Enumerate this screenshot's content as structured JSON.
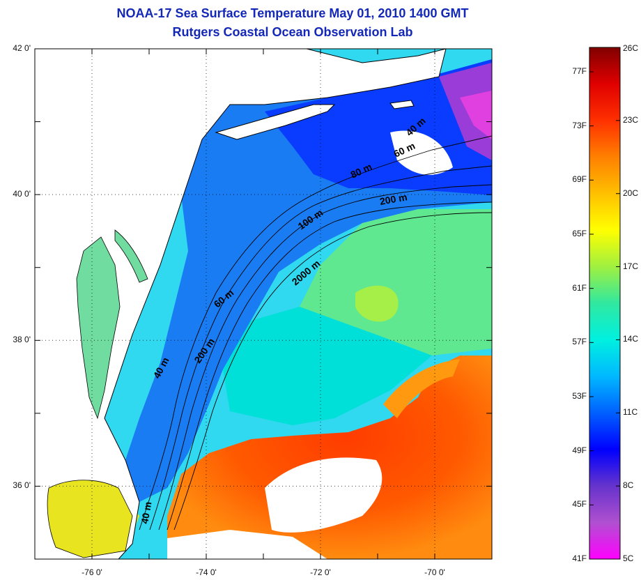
{
  "header": {
    "title": "NOAA-17 Sea Surface Temperature May 01, 2010 1400 GMT",
    "subtitle": "Rutgers Coastal Ocean Observation Lab"
  },
  "map": {
    "lon_labels": [
      {
        "value": -76,
        "label": "-76 0'"
      },
      {
        "value": -74,
        "label": "-74 0'"
      },
      {
        "value": -72,
        "label": "-72 0'"
      },
      {
        "value": -70,
        "label": "-70 0'"
      }
    ],
    "lat_labels": [
      {
        "value": 42,
        "label": "42 0'"
      },
      {
        "value": 40,
        "label": "40 0'"
      },
      {
        "value": 38,
        "label": "38 0'"
      },
      {
        "value": 36,
        "label": "36 0'"
      }
    ],
    "lon_range": [
      -77,
      -69
    ],
    "lat_range": [
      35,
      42
    ],
    "grid": "dotted",
    "contour_labels": [
      "40 m",
      "60 m",
      "80 m",
      "200 m",
      "100 m",
      "2000 m",
      "60 m",
      "40 m",
      "200 m",
      "40 m"
    ]
  },
  "colorbar": {
    "fahrenheit_labels": [
      "77F",
      "73F",
      "69F",
      "65F",
      "61F",
      "57F",
      "53F",
      "49F",
      "45F",
      "41F"
    ],
    "celsius_labels": [
      "26C",
      "23C",
      "20C",
      "17C",
      "14C",
      "11C",
      "8C",
      "5C"
    ],
    "range_c": [
      5,
      26
    ],
    "colors": [
      "#ff00ff",
      "#b050d0",
      "#6633cc",
      "#0000ff",
      "#0060ff",
      "#00b8ff",
      "#00f0e0",
      "#30e8a0",
      "#a0f040",
      "#ffff00",
      "#ffc000",
      "#ff8000",
      "#ff3000",
      "#e00000",
      "#800000"
    ]
  },
  "colors": {
    "title": "#1428b8",
    "land": "#ffffff",
    "coastline": "#000000"
  }
}
